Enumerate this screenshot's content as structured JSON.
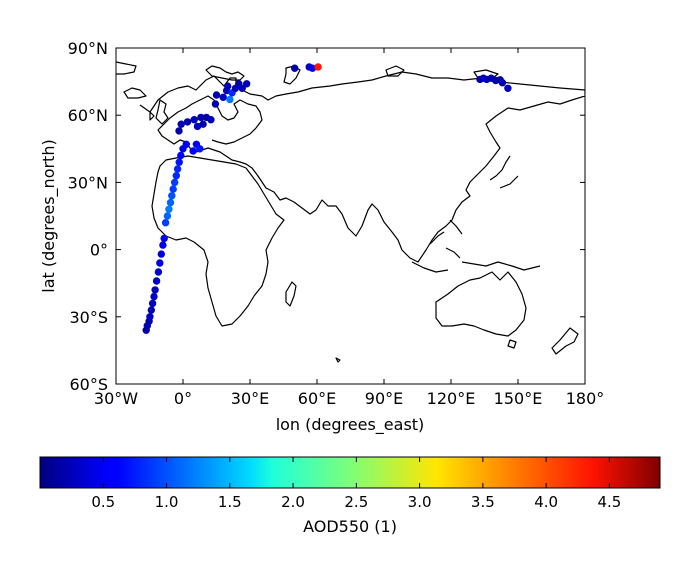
{
  "chart_data": {
    "type": "scatter",
    "title": "",
    "xlabel": "lon (degrees_east)",
    "ylabel": "lat (degrees_north)",
    "xlim": [
      -30,
      180
    ],
    "ylim": [
      -60,
      90
    ],
    "x_ticks": [
      -30,
      0,
      30,
      60,
      90,
      120,
      150,
      180
    ],
    "x_tick_labels": [
      "30°W",
      "0°",
      "30°E",
      "60°E",
      "90°E",
      "120°E",
      "150°E",
      "180°"
    ],
    "y_ticks": [
      90,
      60,
      30,
      0,
      -30,
      -60
    ],
    "y_tick_labels": [
      "90°N",
      "60°N",
      "30°N",
      "0°",
      "30°S",
      "60°S"
    ],
    "grid": false,
    "basemap": "coastlines",
    "colormap": "jet",
    "colorbar": {
      "label": "AOD550 (1)",
      "range": [
        0.0,
        4.9
      ],
      "ticks": [
        0.5,
        1.0,
        1.5,
        2.0,
        2.5,
        3.0,
        3.5,
        4.0,
        4.5
      ],
      "tick_labels": [
        "0.5",
        "1.0",
        "1.5",
        "2.0",
        "2.5",
        "3.0",
        "3.5",
        "4.0",
        "4.5"
      ]
    },
    "points": [
      {
        "lon": -16.5,
        "lat": -36,
        "value": 0.2
      },
      {
        "lon": -16.0,
        "lat": -34,
        "value": 0.25
      },
      {
        "lon": -15.2,
        "lat": -32,
        "value": 0.2
      },
      {
        "lon": -14.8,
        "lat": -30,
        "value": 0.3
      },
      {
        "lon": -14.2,
        "lat": -27,
        "value": 0.25
      },
      {
        "lon": -13.6,
        "lat": -24,
        "value": 0.3
      },
      {
        "lon": -13.0,
        "lat": -21,
        "value": 0.35
      },
      {
        "lon": -12.5,
        "lat": -18,
        "value": 0.3
      },
      {
        "lon": -11.8,
        "lat": -14,
        "value": 0.35
      },
      {
        "lon": -11.0,
        "lat": -10,
        "value": 0.4
      },
      {
        "lon": -10.4,
        "lat": -6,
        "value": 0.45
      },
      {
        "lon": -9.7,
        "lat": -2,
        "value": 0.45
      },
      {
        "lon": -9.0,
        "lat": 2,
        "value": 0.5
      },
      {
        "lon": -8.4,
        "lat": 5,
        "value": 0.55
      },
      {
        "lon": -7.8,
        "lat": 12,
        "value": 0.9
      },
      {
        "lon": -7.0,
        "lat": 15,
        "value": 1.1
      },
      {
        "lon": -6.3,
        "lat": 18,
        "value": 1.2
      },
      {
        "lon": -5.6,
        "lat": 21,
        "value": 1.1
      },
      {
        "lon": -5.0,
        "lat": 24,
        "value": 1.0
      },
      {
        "lon": -4.4,
        "lat": 27,
        "value": 0.9
      },
      {
        "lon": -3.7,
        "lat": 30,
        "value": 0.9
      },
      {
        "lon": -3.0,
        "lat": 33,
        "value": 0.8
      },
      {
        "lon": -2.4,
        "lat": 36,
        "value": 0.8
      },
      {
        "lon": -1.7,
        "lat": 39,
        "value": 0.7
      },
      {
        "lon": -1.0,
        "lat": 42,
        "value": 0.6
      },
      {
        "lon": 0.0,
        "lat": 45,
        "value": 0.5
      },
      {
        "lon": 1.5,
        "lat": 47,
        "value": 0.5
      },
      {
        "lon": 6.0,
        "lat": 47,
        "value": 0.6
      },
      {
        "lon": 7.5,
        "lat": 45,
        "value": 0.7
      },
      {
        "lon": 4.5,
        "lat": 44,
        "value": 0.6
      },
      {
        "lon": -1.8,
        "lat": 53,
        "value": 0.2
      },
      {
        "lon": -0.8,
        "lat": 56,
        "value": 0.25
      },
      {
        "lon": 2.0,
        "lat": 57,
        "value": 0.2
      },
      {
        "lon": 5.0,
        "lat": 58,
        "value": 0.3
      },
      {
        "lon": 8.0,
        "lat": 59,
        "value": 0.25
      },
      {
        "lon": 10.5,
        "lat": 59,
        "value": 0.2
      },
      {
        "lon": 12.5,
        "lat": 58,
        "value": 0.25
      },
      {
        "lon": 6.5,
        "lat": 55,
        "value": 0.3
      },
      {
        "lon": 9.0,
        "lat": 56,
        "value": 0.2
      },
      {
        "lon": 14.5,
        "lat": 65,
        "value": 0.2
      },
      {
        "lon": 15.0,
        "lat": 69,
        "value": 0.25
      },
      {
        "lon": 18.0,
        "lat": 68,
        "value": 0.3
      },
      {
        "lon": 19.5,
        "lat": 71,
        "value": 0.3
      },
      {
        "lon": 21.0,
        "lat": 67,
        "value": 1.2
      },
      {
        "lon": 22.0,
        "lat": 70,
        "value": 0.8
      },
      {
        "lon": 23.5,
        "lat": 72,
        "value": 0.3
      },
      {
        "lon": 25.0,
        "lat": 74,
        "value": 0.2
      },
      {
        "lon": 26.5,
        "lat": 72,
        "value": 0.25
      },
      {
        "lon": 28.5,
        "lat": 74,
        "value": 0.2
      },
      {
        "lon": 20.0,
        "lat": 73,
        "value": 0.25
      },
      {
        "lon": 50.0,
        "lat": 81,
        "value": 0.2
      },
      {
        "lon": 56.5,
        "lat": 81.5,
        "value": 0.3
      },
      {
        "lon": 58.0,
        "lat": 81,
        "value": 0.5
      },
      {
        "lon": 60.5,
        "lat": 81.5,
        "value": 4.2
      },
      {
        "lon": 133.0,
        "lat": 76,
        "value": 0.2
      },
      {
        "lon": 134.5,
        "lat": 76.5,
        "value": 0.25
      },
      {
        "lon": 136.0,
        "lat": 76,
        "value": 0.3
      },
      {
        "lon": 138.0,
        "lat": 76.5,
        "value": 0.2
      },
      {
        "lon": 140.0,
        "lat": 75.5,
        "value": 0.25
      },
      {
        "lon": 142.0,
        "lat": 75.8,
        "value": 0.2
      },
      {
        "lon": 145.5,
        "lat": 72,
        "value": 0.3
      },
      {
        "lon": 143.0,
        "lat": 74.5,
        "value": 0.25
      }
    ]
  }
}
